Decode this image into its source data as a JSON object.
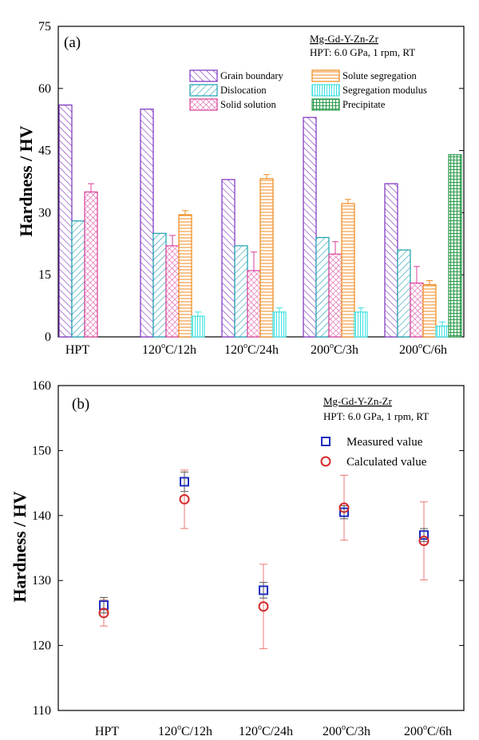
{
  "chart_data": [
    {
      "type": "bar",
      "panel_label": "(a)",
      "material": "Mg-Gd-Y-Zn-Zr",
      "condition": "HPT: 6.0 GPa, 1 rpm, RT",
      "ylabel": "Hardness / HV",
      "ylim": [
        0,
        75
      ],
      "yticks": [
        0,
        15,
        30,
        45,
        60,
        75
      ],
      "categories": [
        "HPT",
        "120°C/12h",
        "120°C/24h",
        "200°C/3h",
        "200°C/6h"
      ],
      "category_labels": [
        {
          "pre": "HPT",
          "sup": "",
          "post": ""
        },
        {
          "pre": "120",
          "sup": "o",
          "post": "C/12h"
        },
        {
          "pre": "120",
          "sup": "o",
          "post": "C/24h"
        },
        {
          "pre": "200",
          "sup": "o",
          "post": "C/3h"
        },
        {
          "pre": "200",
          "sup": "o",
          "post": "C/6h"
        }
      ],
      "series": [
        {
          "name": "Grain boundary",
          "color": "#7b2fbe",
          "pattern": "diag-right",
          "values": [
            56,
            55,
            38,
            53,
            37
          ],
          "errors": [
            null,
            null,
            null,
            null,
            null
          ]
        },
        {
          "name": "Dislocation",
          "color": "#1a9fb0",
          "pattern": "diag-left",
          "values": [
            28,
            25,
            22,
            24,
            21
          ],
          "errors": [
            null,
            null,
            null,
            null,
            null
          ]
        },
        {
          "name": "Solid solution",
          "color": "#d9409a",
          "pattern": "cross",
          "values": [
            35,
            22,
            16,
            20,
            13
          ],
          "errors": [
            2,
            2.5,
            4.5,
            3,
            4
          ]
        },
        {
          "name": "Solute segregation",
          "color": "#f08a1c",
          "pattern": "horizontal",
          "values": [
            null,
            29.5,
            38.2,
            32.2,
            12.6
          ],
          "errors": [
            null,
            1,
            1,
            1,
            1
          ]
        },
        {
          "name": "Segregation modulus",
          "color": "#3ee0e0",
          "pattern": "vertical",
          "values": [
            null,
            5,
            6,
            6,
            2.6
          ],
          "errors": [
            null,
            1,
            1,
            1,
            1
          ]
        },
        {
          "name": "Precipitate",
          "color": "#2a9a4a",
          "pattern": "grid",
          "values": [
            null,
            null,
            null,
            null,
            44
          ],
          "errors": [
            null,
            null,
            null,
            null,
            null
          ]
        }
      ]
    },
    {
      "type": "scatter",
      "panel_label": "(b)",
      "material": "Mg-Gd-Y-Zn-Zr",
      "condition": "HPT: 6.0 GPa, 1 rpm, RT",
      "ylabel": "Hardness / HV",
      "ylim": [
        110,
        160
      ],
      "yticks": [
        110,
        120,
        130,
        140,
        150,
        160
      ],
      "categories": [
        "HPT",
        "120°C/12h",
        "120°C/24h",
        "200°C/3h",
        "200°C/6h"
      ],
      "category_labels": [
        {
          "pre": "HPT",
          "sup": "",
          "post": ""
        },
        {
          "pre": "120",
          "sup": "o",
          "post": "C/12h"
        },
        {
          "pre": "120",
          "sup": "o",
          "post": "C/24h"
        },
        {
          "pre": "200",
          "sup": "o",
          "post": "C/3h"
        },
        {
          "pre": "200",
          "sup": "o",
          "post": "C/6h"
        }
      ],
      "series": [
        {
          "name": "Measured value",
          "color": "#1f2fbf",
          "marker": "square",
          "values": [
            126.2,
            145.2,
            128.5,
            140.5,
            137.0
          ],
          "errors": [
            1.2,
            1.5,
            1.2,
            1,
            1
          ]
        },
        {
          "name": "Calculated value",
          "color": "#d42a2a",
          "marker": "circle",
          "values": [
            125.0,
            142.5,
            126.0,
            141.2,
            136.1
          ],
          "errors": [
            2,
            4.5,
            6.5,
            5,
            6
          ]
        }
      ]
    }
  ]
}
